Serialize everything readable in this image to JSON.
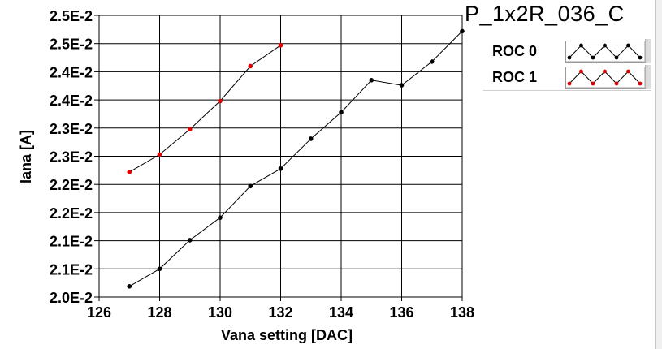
{
  "chart_data": {
    "type": "line",
    "title": "P_1x2R_036_C",
    "xlabel": "Vana setting [DAC]",
    "ylabel": "Iana [A]",
    "xlim": [
      126,
      138
    ],
    "ylim": [
      0.02,
      0.025
    ],
    "x_ticks": [
      126,
      128,
      130,
      132,
      134,
      136,
      138
    ],
    "y_ticks": [
      0.02,
      0.0205,
      0.021,
      0.0215,
      0.022,
      0.0225,
      0.023,
      0.0235,
      0.024,
      0.0245,
      0.025
    ],
    "y_tick_labels": [
      "2.0E-2",
      "2.1E-2",
      "2.1E-2",
      "2.2E-2",
      "2.2E-2",
      "2.3E-2",
      "2.3E-2",
      "2.4E-2",
      "2.4E-2",
      "2.5E-2",
      "2.5E-2"
    ],
    "grid": true,
    "legend_position": "top-right",
    "series": [
      {
        "name": "ROC 0",
        "color": "#000000",
        "marker_color": "#000000",
        "x": [
          127,
          128,
          129,
          130,
          131,
          132,
          133,
          134,
          135,
          136,
          137,
          138
        ],
        "y": [
          0.02019,
          0.0205,
          0.02101,
          0.02141,
          0.02197,
          0.02228,
          0.02281,
          0.02328,
          0.02385,
          0.02376,
          0.02418,
          0.02472
        ]
      },
      {
        "name": "ROC 1",
        "color": "#000000",
        "marker_color": "#e00000",
        "x": [
          127,
          128,
          129,
          130,
          131,
          132
        ],
        "y": [
          0.02222,
          0.02253,
          0.02298,
          0.02348,
          0.0241,
          0.02447
        ]
      }
    ]
  }
}
